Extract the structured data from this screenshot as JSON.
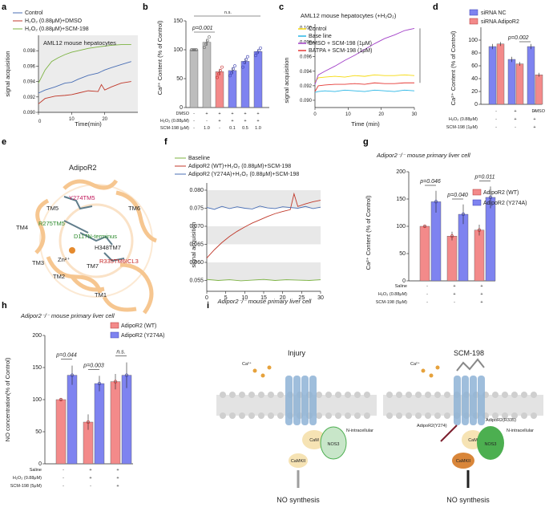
{
  "panel_letters": [
    "a",
    "b",
    "c",
    "d",
    "e",
    "f",
    "g",
    "h",
    "i"
  ],
  "colors": {
    "control": "#4a6fb5",
    "dmso": "#c0392b",
    "scm": "#7cb342",
    "grey": "#bdbdbd",
    "pink": "#f38a8a",
    "blue": "#7e83f0",
    "yellow": "#f5d90a",
    "cyan": "#29b6e6",
    "purple": "#a240c8",
    "red": "#e53935"
  },
  "chart_data": [
    {
      "id": "a",
      "type": "line",
      "title": "AML12 mouse hepatocytes",
      "xlabel": "Time(min)",
      "ylabel": "signal acquisition",
      "xlim": [
        0,
        30
      ],
      "ylim": [
        0.09,
        0.1
      ],
      "xticks": [
        0,
        10,
        20
      ],
      "yticks": [
        0.09,
        0.092,
        0.094,
        0.096,
        0.098
      ],
      "legend": [
        "Control",
        "H₂O₂ (0.88μM)+DMSO",
        "H₂O₂ (0.88μM)+SCM-198"
      ],
      "series": [
        {
          "name": "Control",
          "x": [
            0,
            2,
            5,
            8,
            10,
            12,
            15,
            18,
            20,
            22,
            25,
            28
          ],
          "y": [
            0.0925,
            0.0929,
            0.0933,
            0.0938,
            0.0939,
            0.0943,
            0.0948,
            0.0951,
            0.0955,
            0.0958,
            0.0962,
            0.0966
          ]
        },
        {
          "name": "H2O2+DMSO",
          "x": [
            0,
            2,
            5,
            8,
            10,
            12,
            15,
            18,
            19,
            20,
            22,
            25,
            28
          ],
          "y": [
            0.0911,
            0.0918,
            0.0921,
            0.0922,
            0.0923,
            0.0925,
            0.0928,
            0.0927,
            0.0936,
            0.0929,
            0.0933,
            0.0938,
            0.094
          ]
        },
        {
          "name": "H2O2+SCM-198",
          "x": [
            0,
            2,
            4,
            6,
            8,
            10,
            12,
            15,
            18,
            20,
            22,
            25,
            28
          ],
          "y": [
            0.0938,
            0.0955,
            0.0966,
            0.0971,
            0.0975,
            0.0978,
            0.098,
            0.0983,
            0.0985,
            0.0986,
            0.0987,
            0.0988,
            0.0988
          ]
        }
      ]
    },
    {
      "id": "b",
      "type": "bar",
      "ylabel": "Ca²⁺ Content (% of Control)",
      "ylim": [
        0,
        150
      ],
      "yticks": [
        0,
        50,
        100,
        150
      ],
      "rows": [
        {
          "label": "DMSO",
          "values": [
            "-",
            "+",
            "+",
            "+",
            "+",
            "+"
          ]
        },
        {
          "label": "H₂O₂ (0.88μM)",
          "values": [
            "-",
            "-",
            "+",
            "+",
            "+",
            "+"
          ]
        },
        {
          "label": "SCM-198 (μM)",
          "values": [
            "-",
            "1.0",
            "-",
            "0.1",
            "0.5",
            "1.0"
          ]
        }
      ],
      "values": [
        100,
        113,
        62,
        64,
        80,
        97
      ],
      "errors": [
        2,
        6,
        5,
        6,
        5,
        4
      ],
      "points": [
        [
          100,
          100,
          100,
          100
        ],
        [
          104,
          110,
          116,
          122
        ],
        [
          52,
          58,
          64,
          70
        ],
        [
          55,
          60,
          67,
          72
        ],
        [
          70,
          78,
          83,
          88
        ],
        [
          90,
          95,
          99,
          103
        ]
      ],
      "bar_colors": [
        "#bdbdbd",
        "#bdbdbd",
        "#f38a8a",
        "#7e83f0",
        "#7e83f0",
        "#7e83f0"
      ],
      "annotations": [
        "p=0.001",
        "n.s."
      ]
    },
    {
      "id": "c",
      "type": "line",
      "title": "AML12 mouse hepatocytes (+H₂O₂)",
      "xlabel": "Time (min)",
      "ylabel": "signal acquisition",
      "xlim": [
        0,
        30
      ],
      "ylim": [
        0.089,
        0.1005
      ],
      "xticks": [
        0,
        10,
        20,
        30
      ],
      "yticks": [
        0.09,
        0.092,
        0.094,
        0.096,
        0.098,
        0.1
      ],
      "legend": [
        "Control",
        "Base line",
        "DMSO  + SCM-198 (1μM)",
        "BATPA + SCM-198 (1μM)"
      ],
      "series": [
        {
          "name": "Control",
          "x": [
            0,
            1,
            3,
            6,
            9,
            12,
            15,
            18,
            21,
            24,
            27,
            30
          ],
          "y": [
            0.0925,
            0.0931,
            0.0932,
            0.0933,
            0.0932,
            0.0934,
            0.0933,
            0.0935,
            0.0934,
            0.0934,
            0.0935,
            0.0934
          ]
        },
        {
          "name": "Base line",
          "x": [
            0,
            1,
            3,
            6,
            9,
            12,
            15,
            18,
            21,
            24,
            27,
            30
          ],
          "y": [
            0.0911,
            0.0912,
            0.0913,
            0.0912,
            0.0914,
            0.0913,
            0.0912,
            0.0914,
            0.0913,
            0.0912,
            0.0914,
            0.0913
          ]
        },
        {
          "name": "DMSO+SCM-198",
          "x": [
            0,
            1,
            3,
            6,
            9,
            12,
            15,
            18,
            21,
            24,
            27,
            30
          ],
          "y": [
            0.0922,
            0.0935,
            0.094,
            0.0947,
            0.0955,
            0.0962,
            0.097,
            0.0978,
            0.0985,
            0.099,
            0.0996,
            0.0999
          ]
        },
        {
          "name": "BATPA+SCM-198",
          "x": [
            0,
            1,
            3,
            6,
            9,
            12,
            15,
            18,
            21,
            24,
            27,
            30
          ],
          "y": [
            0.0912,
            0.092,
            0.0921,
            0.0922,
            0.0922,
            0.0923,
            0.0922,
            0.0924,
            0.0923,
            0.0923,
            0.0924,
            0.0924
          ]
        }
      ]
    },
    {
      "id": "d",
      "type": "bar",
      "ylabel": "Ca²⁺ Content (% of Control)",
      "ylim": [
        0,
        120
      ],
      "yticks": [
        0,
        20,
        40,
        60,
        80,
        100
      ],
      "legend": [
        "siRNA NC",
        "siRNA AdipoR2"
      ],
      "rows": [
        {
          "label": "DMSO",
          "values": [
            "-",
            "+",
            "+"
          ]
        },
        {
          "label": "H₂O₂ (0.88μM)",
          "values": [
            "-",
            "+",
            "+"
          ]
        },
        {
          "label": "SCM-198 (1μM)",
          "values": [
            "-",
            "-",
            "+"
          ]
        }
      ],
      "series": [
        {
          "name": "siRNA NC",
          "values": [
            90,
            70,
            90
          ],
          "errors": [
            4,
            4,
            4
          ]
        },
        {
          "name": "siRNA AdipoR2",
          "values": [
            94,
            63,
            46
          ],
          "errors": [
            3,
            3,
            3
          ]
        }
      ],
      "annotations": [
        "p=0.002"
      ]
    },
    {
      "id": "f",
      "type": "line",
      "xlabel": "Adipor2⁻/⁻ mouse primary liver cell",
      "ylabel": "signal acquisition",
      "xlim": [
        0,
        30
      ],
      "ylim": [
        0.052,
        0.082
      ],
      "xticks": [
        0,
        5,
        10,
        15,
        20,
        25,
        30
      ],
      "yticks": [
        0.055,
        0.06,
        0.065,
        0.07,
        0.075,
        0.08
      ],
      "legend": [
        "Baseline",
        "AdipoR2 (WT)+H₂O₂ (0.88μM)+SCM-198",
        "AdipoR2 (Y274A)+H₂O₂ (0.88μM)+SCM-198"
      ],
      "series": [
        {
          "name": "Baseline",
          "x": [
            0,
            3,
            6,
            9,
            12,
            15,
            18,
            21,
            24,
            27,
            30
          ],
          "y": [
            0.0553,
            0.055,
            0.0552,
            0.0549,
            0.0551,
            0.0553,
            0.055,
            0.0552,
            0.0551,
            0.055,
            0.0552
          ]
        },
        {
          "name": "WT",
          "x": [
            0,
            2,
            4,
            6,
            8,
            10,
            12,
            14,
            16,
            18,
            20,
            22,
            23,
            24,
            26,
            28,
            30
          ],
          "y": [
            0.0612,
            0.0635,
            0.0655,
            0.0672,
            0.0686,
            0.0698,
            0.0709,
            0.0718,
            0.0727,
            0.0735,
            0.0741,
            0.0746,
            0.079,
            0.0755,
            0.0762,
            0.0768,
            0.0772
          ]
        },
        {
          "name": "Y274A",
          "x": [
            0,
            2,
            4,
            6,
            8,
            10,
            12,
            14,
            16,
            18,
            20,
            22,
            24,
            26,
            28,
            30
          ],
          "y": [
            0.0752,
            0.0747,
            0.0755,
            0.0749,
            0.0754,
            0.075,
            0.0748,
            0.0756,
            0.0751,
            0.0749,
            0.0754,
            0.0752,
            0.075,
            0.0755,
            0.0749,
            0.0753
          ]
        }
      ]
    },
    {
      "id": "g",
      "type": "bar",
      "title": "Adipor2⁻/⁻ mouse primary liver cell",
      "ylabel": "Ca²⁺ Content (% of Control)",
      "ylim": [
        0,
        200
      ],
      "yticks": [
        0,
        50,
        100,
        150,
        200
      ],
      "legend": [
        "AdipoR2 (WT)",
        "AdipoR2 (Y274A)"
      ],
      "rows": [
        {
          "label": "Saline",
          "values": [
            "-",
            "+",
            "+"
          ]
        },
        {
          "label": "H₂O₂ (0.88μM)",
          "values": [
            "-",
            "+",
            "+"
          ]
        },
        {
          "label": "SCM-198 (5μM)",
          "values": [
            "-",
            "-",
            "+"
          ]
        }
      ],
      "series": [
        {
          "name": "AdipoR2 (WT)",
          "values": [
            100,
            82,
            93
          ],
          "errors": [
            2,
            8,
            10
          ]
        },
        {
          "name": "AdipoR2 (Y274A)",
          "values": [
            145,
            122,
            153
          ],
          "errors": [
            20,
            18,
            20
          ]
        }
      ],
      "annotations": [
        "p=0.046",
        "p=0.040",
        "p=0.011"
      ]
    },
    {
      "id": "h",
      "type": "bar",
      "title": "Adipor2⁻/⁻ mouse primary liver cell",
      "ylabel": "NO concentration(% of Control)",
      "ylim": [
        0,
        200
      ],
      "yticks": [
        0,
        50,
        100,
        150,
        200
      ],
      "legend": [
        "AdipoR2 (WT)",
        "AdipoR2 (Y274A)"
      ],
      "rows": [
        {
          "label": "Saline",
          "values": [
            "-",
            "+",
            "+"
          ]
        },
        {
          "label": "H₂O₂ (0.88μM)",
          "values": [
            "-",
            "+",
            "+"
          ]
        },
        {
          "label": "SCM-198 (5μM)",
          "values": [
            "-",
            "-",
            "+"
          ]
        }
      ],
      "series": [
        {
          "name": "AdipoR2 (WT)",
          "values": [
            100,
            65,
            128
          ],
          "errors": [
            2,
            12,
            12
          ]
        },
        {
          "name": "AdipoR2 (Y274A)",
          "values": [
            138,
            125,
            138
          ],
          "errors": [
            15,
            12,
            20
          ]
        }
      ],
      "annotations": [
        "p=0.044",
        "p=0.003",
        "n.s."
      ]
    }
  ],
  "panel_e": {
    "title": "AdipoR2",
    "labels": [
      "Y274TM5",
      "TM5",
      "TM6",
      "R275TM5",
      "TM4",
      "D117N-terminus",
      "H348TM7",
      "R335TM6ICL3",
      "TM3",
      "Zn²⁺",
      "TM7",
      "TM2",
      "TM1"
    ]
  },
  "panel_i": {
    "left_title": "Injury",
    "right_title": "SCM-198",
    "ca": "Ca²⁺",
    "cam": "CaM",
    "nos3": "NOS3",
    "camkii": "CaMKII",
    "n_intra": "N-intracellular",
    "site1": "AdipoR2(Y274)",
    "site2": "AdipoR2(R335)",
    "out": "NO synthesis"
  }
}
